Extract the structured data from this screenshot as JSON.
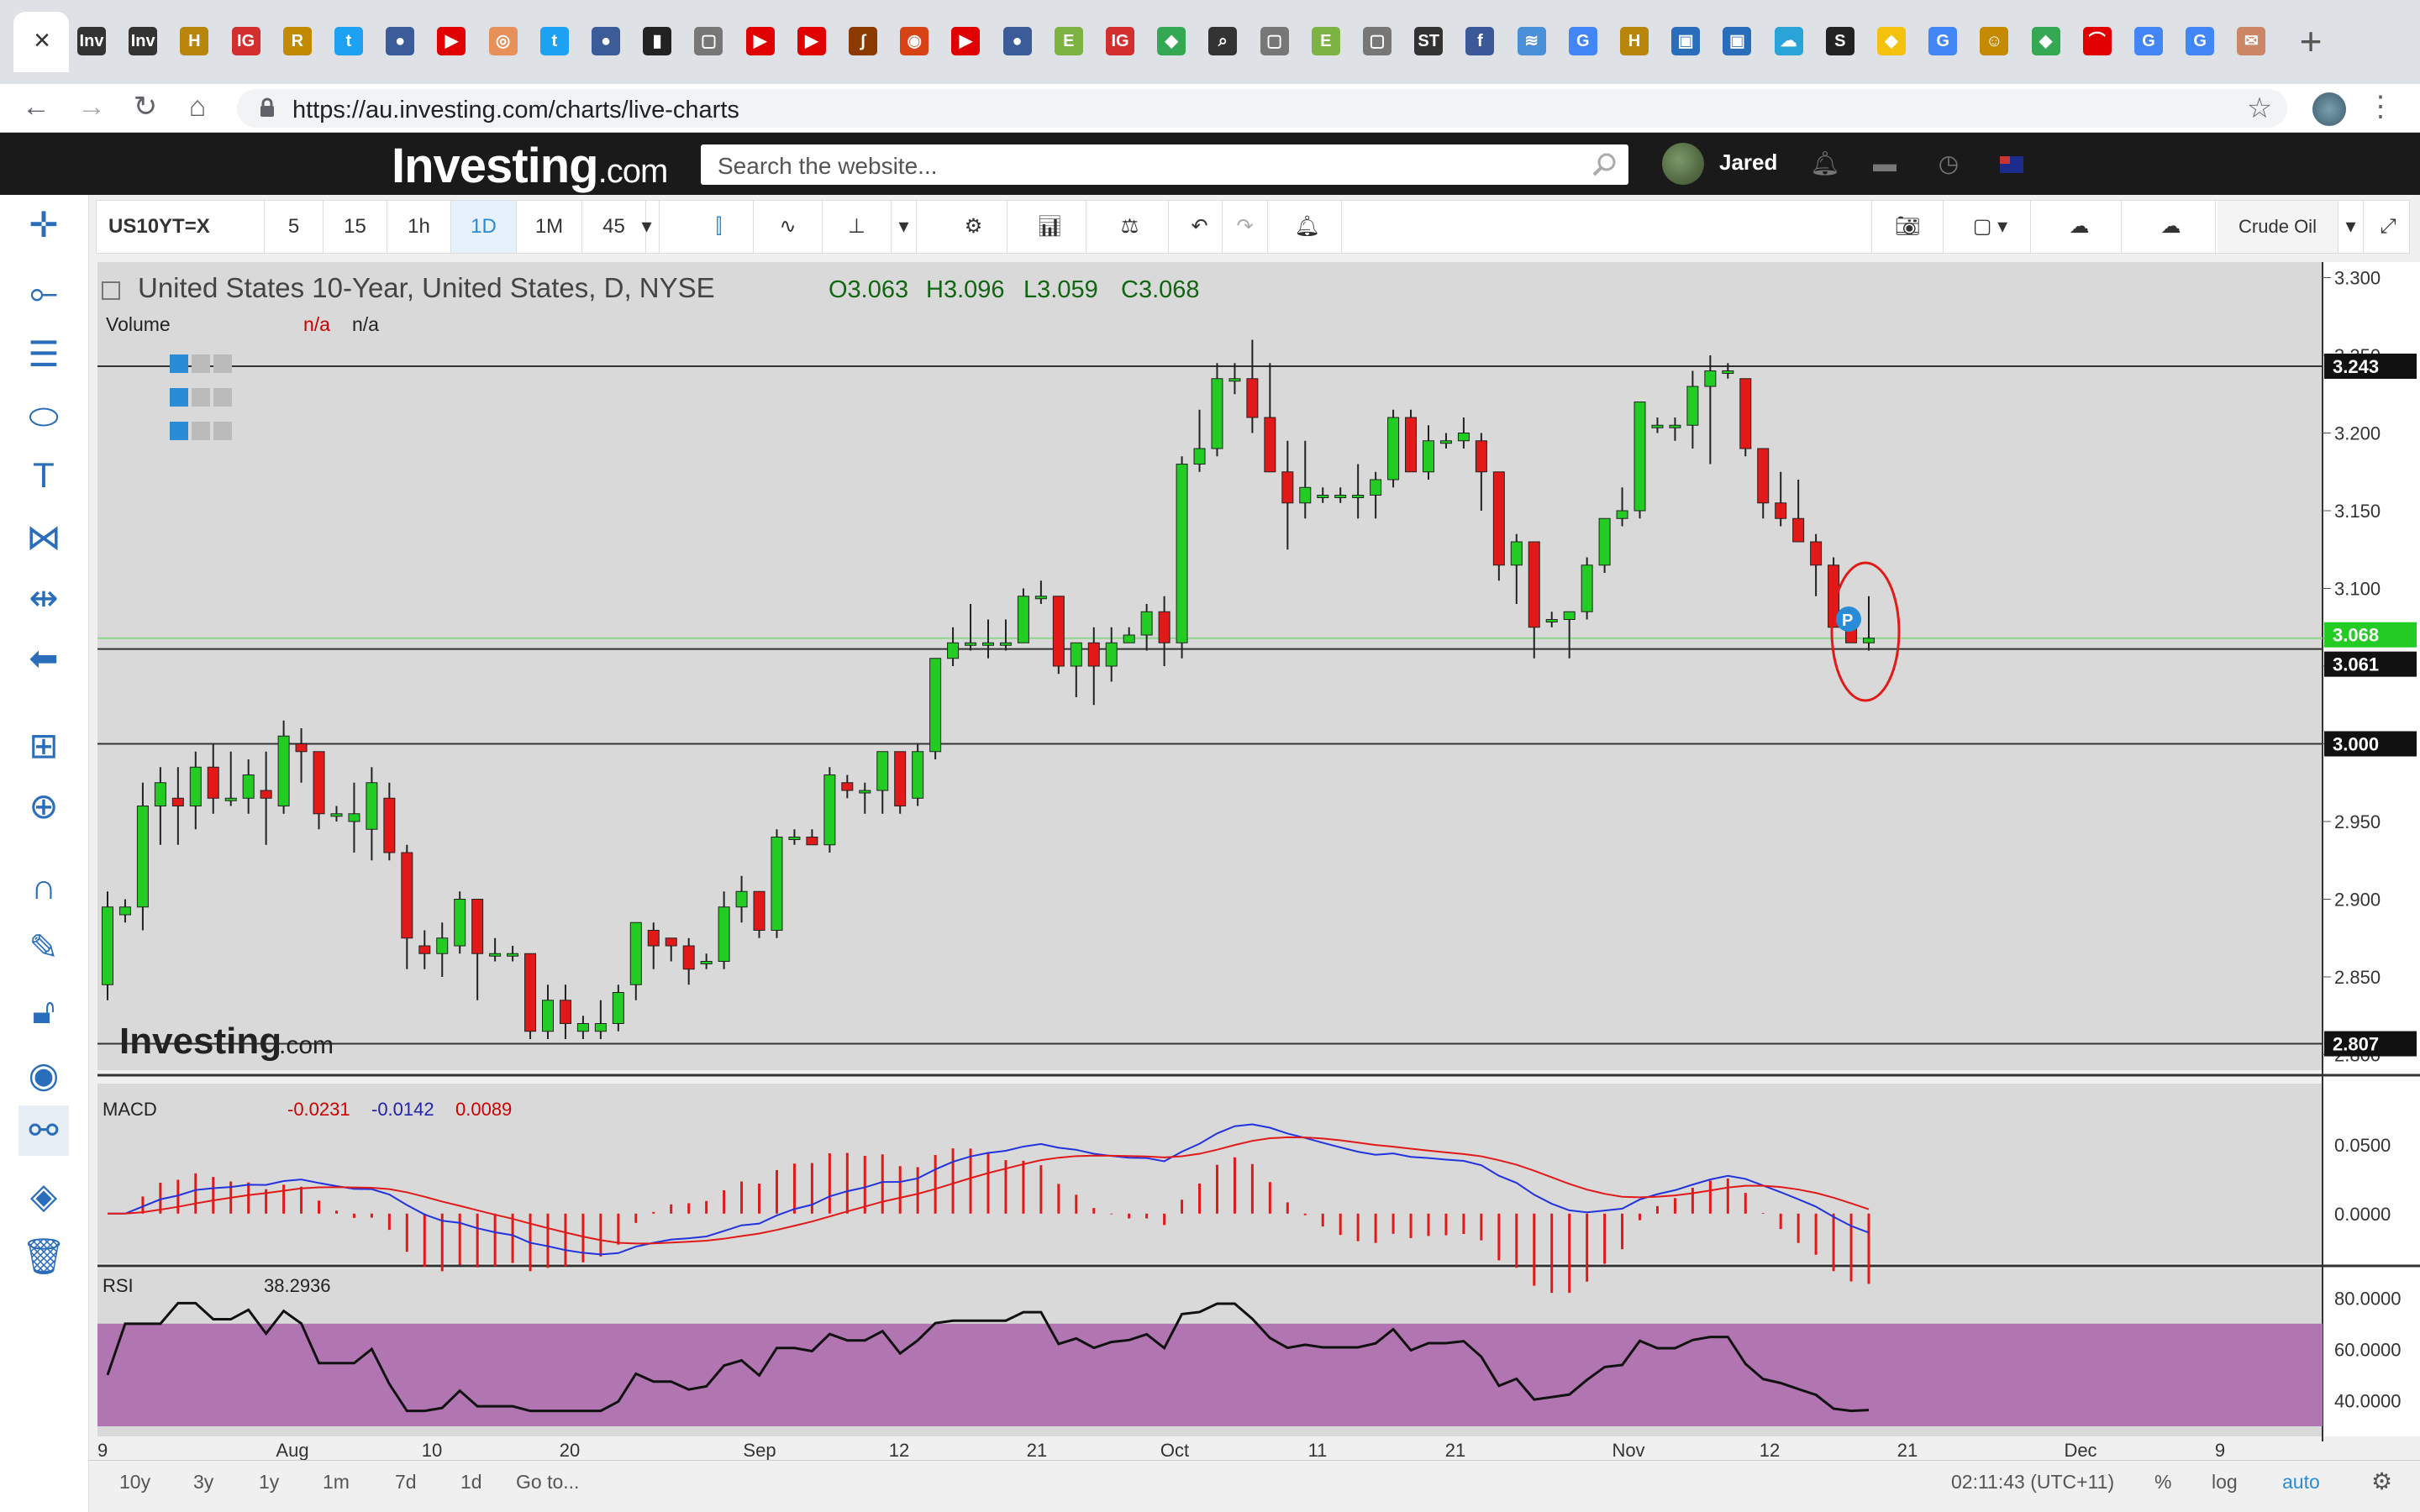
{
  "browser": {
    "url": "https://au.investing.com/charts/live-charts",
    "tab_close": "×",
    "favicons": [
      {
        "label": "Inv",
        "color": "#333333"
      },
      {
        "label": "Inv",
        "color": "#333333"
      },
      {
        "label": "H",
        "color": "#b8860b"
      },
      {
        "label": "IG",
        "color": "#d32f2f"
      },
      {
        "label": "R",
        "color": "#c28a00"
      },
      {
        "label": "t",
        "color": "#1da1f2"
      },
      {
        "label": "●",
        "color": "#3b5b99"
      },
      {
        "label": "▶",
        "color": "#e00000"
      },
      {
        "label": "◎",
        "color": "#e8905a"
      },
      {
        "label": "t",
        "color": "#1da1f2"
      },
      {
        "label": "●",
        "color": "#3b5b99"
      },
      {
        "label": "▮",
        "color": "#222222"
      },
      {
        "label": "▢",
        "color": "#777777"
      },
      {
        "label": "▶",
        "color": "#e00000"
      },
      {
        "label": "▶",
        "color": "#e00000"
      },
      {
        "label": "∫",
        "color": "#8b3a00"
      },
      {
        "label": "◉",
        "color": "#d84315"
      },
      {
        "label": "▶",
        "color": "#e00000"
      },
      {
        "label": "●",
        "color": "#3b5b99"
      },
      {
        "label": "E",
        "color": "#7cb342"
      },
      {
        "label": "IG",
        "color": "#d32f2f"
      },
      {
        "label": "◆",
        "color": "#34a853"
      },
      {
        "label": "⌕",
        "color": "#333333"
      },
      {
        "label": "▢",
        "color": "#777777"
      },
      {
        "label": "E",
        "color": "#7cb342"
      },
      {
        "label": "▢",
        "color": "#777777"
      },
      {
        "label": "ST",
        "color": "#333333"
      },
      {
        "label": "f",
        "color": "#3b5998"
      },
      {
        "label": "≋",
        "color": "#4a90d9"
      },
      {
        "label": "G",
        "color": "#4285f4"
      },
      {
        "label": "H",
        "color": "#b8860b"
      },
      {
        "label": "▣",
        "color": "#2a6ebb"
      },
      {
        "label": "▣",
        "color": "#2a6ebb"
      },
      {
        "label": "☁",
        "color": "#2aa3d8"
      },
      {
        "label": "S",
        "color": "#222222"
      },
      {
        "label": "◆",
        "color": "#f4c20d"
      },
      {
        "label": "G",
        "color": "#4285f4"
      },
      {
        "label": "☺",
        "color": "#c58a00"
      },
      {
        "label": "◆",
        "color": "#34a853"
      },
      {
        "label": "⌒",
        "color": "#e00000"
      },
      {
        "label": "G",
        "color": "#4285f4"
      },
      {
        "label": "G",
        "color": "#4285f4"
      },
      {
        "label": "✉",
        "color": "#cc8866"
      }
    ],
    "new_tab": "+"
  },
  "site": {
    "logo_main": "Investing",
    "logo_suffix": ".com",
    "search_placeholder": "Search the website...",
    "user_name": "Jared"
  },
  "toolbar": {
    "symbol": "US10YT=X",
    "intervals": [
      "5",
      "15",
      "1h",
      "1D",
      "1M",
      "45"
    ],
    "selected_interval": "1D",
    "compare_label": "Crude Oil"
  },
  "chart": {
    "title": "United States 10-Year, United States, D, NYSE",
    "ohlc": {
      "o_label": "O",
      "o": "3.063",
      "h_label": "H",
      "h": "3.096",
      "l_label": "L",
      "l": "3.059",
      "c_label": "C",
      "c": "3.068"
    },
    "volume_label": "Volume",
    "volume_values": [
      "n/a",
      "n/a"
    ],
    "watermark_main": "Investing",
    "watermark_suffix": ".com",
    "marker_label": "P",
    "price_labels": [
      {
        "text": "3.243",
        "style": "dark"
      },
      {
        "text": "3.068",
        "style": "green"
      },
      {
        "text": "3.061",
        "style": "dark"
      },
      {
        "text": "3.000",
        "style": "dark"
      },
      {
        "text": "2.807",
        "style": "dark"
      }
    ],
    "colors": {
      "up": "#22cc22",
      "down": "#e11919",
      "background": "#d9d9d9",
      "rsi_band": "#b175b1",
      "macd_line": "#2233dd",
      "signal_line": "#e11919"
    }
  },
  "macd_panel": {
    "label": "MACD",
    "v1": "-0.0231",
    "v2": "-0.0142",
    "v3": "0.0089",
    "ticks": [
      "0.0500",
      "0.0000"
    ]
  },
  "rsi_panel": {
    "label": "RSI",
    "value": "38.2936",
    "ticks": [
      "80.0000",
      "60.0000",
      "40.0000"
    ]
  },
  "x_labels": [
    "9",
    "Aug",
    "10",
    "20",
    "Sep",
    "12",
    "21",
    "Oct",
    "11",
    "21",
    "Nov",
    "12",
    "21",
    "Dec",
    "9"
  ],
  "range_bar": {
    "ranges": [
      "10y",
      "3y",
      "1y",
      "1m",
      "7d",
      "1d"
    ],
    "goto": "Go to...",
    "time": "02:11:43 (UTC+11)",
    "percent": "%",
    "log": "log",
    "auto": "auto"
  },
  "chart_data": {
    "type": "candlestick",
    "title": "United States 10-Year, United States, D, NYSE",
    "y_axis_ticks": [
      "3.300",
      "3.250",
      "3.200",
      "3.150",
      "3.100",
      "3.050",
      "3.000",
      "2.950",
      "2.900",
      "2.850",
      "2.800"
    ],
    "ylim": [
      2.79,
      3.31
    ],
    "horizontal_lines": [
      3.243,
      3.061,
      3.0,
      2.807
    ],
    "last_price": 3.068,
    "candles_ohlc": [
      [
        2.845,
        2.905,
        2.835,
        2.895
      ],
      [
        2.89,
        2.9,
        2.885,
        2.895
      ],
      [
        2.895,
        2.975,
        2.88,
        2.96
      ],
      [
        2.96,
        2.985,
        2.935,
        2.975
      ],
      [
        2.965,
        2.985,
        2.935,
        2.96
      ],
      [
        2.96,
        2.995,
        2.945,
        2.985
      ],
      [
        2.985,
        3.0,
        2.955,
        2.965
      ],
      [
        2.965,
        2.995,
        2.96,
        2.965
      ],
      [
        2.965,
        2.99,
        2.955,
        2.98
      ],
      [
        2.97,
        2.995,
        2.935,
        2.965
      ],
      [
        2.96,
        3.015,
        2.955,
        3.005
      ],
      [
        3.0,
        3.01,
        2.975,
        2.995
      ],
      [
        2.995,
        2.995,
        2.945,
        2.955
      ],
      [
        2.955,
        2.96,
        2.95,
        2.955
      ],
      [
        2.95,
        2.975,
        2.93,
        2.955
      ],
      [
        2.945,
        2.985,
        2.925,
        2.975
      ],
      [
        2.965,
        2.975,
        2.925,
        2.93
      ],
      [
        2.93,
        2.935,
        2.855,
        2.875
      ],
      [
        2.87,
        2.88,
        2.855,
        2.865
      ],
      [
        2.865,
        2.885,
        2.85,
        2.875
      ],
      [
        2.87,
        2.905,
        2.865,
        2.9
      ],
      [
        2.9,
        2.9,
        2.835,
        2.865
      ],
      [
        2.865,
        2.875,
        2.86,
        2.865
      ],
      [
        2.865,
        2.87,
        2.86,
        2.865
      ],
      [
        2.865,
        2.865,
        2.81,
        2.815
      ],
      [
        2.815,
        2.845,
        2.81,
        2.835
      ],
      [
        2.835,
        2.845,
        2.81,
        2.82
      ],
      [
        2.815,
        2.825,
        2.81,
        2.82
      ],
      [
        2.815,
        2.835,
        2.81,
        2.82
      ],
      [
        2.82,
        2.845,
        2.815,
        2.84
      ],
      [
        2.845,
        2.885,
        2.835,
        2.885
      ],
      [
        2.88,
        2.885,
        2.855,
        2.87
      ],
      [
        2.875,
        2.875,
        2.86,
        2.87
      ],
      [
        2.87,
        2.875,
        2.845,
        2.855
      ],
      [
        2.86,
        2.865,
        2.855,
        2.86
      ],
      [
        2.86,
        2.905,
        2.855,
        2.895
      ],
      [
        2.895,
        2.915,
        2.885,
        2.905
      ],
      [
        2.905,
        2.905,
        2.875,
        2.88
      ],
      [
        2.88,
        2.945,
        2.875,
        2.94
      ],
      [
        2.94,
        2.945,
        2.935,
        2.94
      ],
      [
        2.94,
        2.945,
        2.935,
        2.935
      ],
      [
        2.935,
        2.985,
        2.93,
        2.98
      ],
      [
        2.975,
        2.98,
        2.965,
        2.97
      ],
      [
        2.97,
        2.975,
        2.955,
        2.97
      ],
      [
        2.97,
        2.995,
        2.955,
        2.995
      ],
      [
        2.995,
        2.995,
        2.955,
        2.96
      ],
      [
        2.965,
        3.0,
        2.96,
        2.995
      ],
      [
        2.995,
        3.055,
        2.99,
        3.055
      ],
      [
        3.055,
        3.075,
        3.05,
        3.065
      ],
      [
        3.065,
        3.09,
        3.06,
        3.065
      ],
      [
        3.065,
        3.08,
        3.055,
        3.065
      ],
      [
        3.065,
        3.08,
        3.06,
        3.065
      ],
      [
        3.065,
        3.1,
        3.065,
        3.095
      ],
      [
        3.095,
        3.105,
        3.09,
        3.095
      ],
      [
        3.095,
        3.095,
        3.045,
        3.05
      ],
      [
        3.05,
        3.065,
        3.03,
        3.065
      ],
      [
        3.065,
        3.075,
        3.025,
        3.05
      ],
      [
        3.05,
        3.075,
        3.04,
        3.065
      ],
      [
        3.065,
        3.075,
        3.065,
        3.07
      ],
      [
        3.07,
        3.09,
        3.06,
        3.085
      ],
      [
        3.085,
        3.095,
        3.05,
        3.065
      ],
      [
        3.065,
        3.185,
        3.055,
        3.18
      ],
      [
        3.18,
        3.215,
        3.175,
        3.19
      ],
      [
        3.19,
        3.245,
        3.185,
        3.235
      ],
      [
        3.235,
        3.245,
        3.225,
        3.235
      ],
      [
        3.235,
        3.26,
        3.2,
        3.21
      ],
      [
        3.21,
        3.245,
        3.185,
        3.175
      ],
      [
        3.175,
        3.195,
        3.125,
        3.155
      ],
      [
        3.155,
        3.195,
        3.145,
        3.165
      ],
      [
        3.16,
        3.165,
        3.155,
        3.16
      ],
      [
        3.16,
        3.165,
        3.155,
        3.16
      ],
      [
        3.16,
        3.18,
        3.145,
        3.16
      ],
      [
        3.16,
        3.175,
        3.145,
        3.17
      ],
      [
        3.17,
        3.215,
        3.165,
        3.21
      ],
      [
        3.21,
        3.215,
        3.175,
        3.175
      ],
      [
        3.175,
        3.205,
        3.17,
        3.195
      ],
      [
        3.195,
        3.2,
        3.19,
        3.195
      ],
      [
        3.195,
        3.21,
        3.19,
        3.2
      ],
      [
        3.195,
        3.2,
        3.15,
        3.175
      ],
      [
        3.175,
        3.175,
        3.105,
        3.115
      ],
      [
        3.115,
        3.135,
        3.09,
        3.13
      ],
      [
        3.13,
        3.13,
        3.055,
        3.075
      ],
      [
        3.08,
        3.085,
        3.075,
        3.08
      ],
      [
        3.08,
        3.085,
        3.055,
        3.085
      ],
      [
        3.085,
        3.12,
        3.08,
        3.115
      ],
      [
        3.115,
        3.145,
        3.11,
        3.145
      ],
      [
        3.145,
        3.165,
        3.14,
        3.15
      ],
      [
        3.15,
        3.22,
        3.145,
        3.22
      ],
      [
        3.205,
        3.21,
        3.2,
        3.205
      ],
      [
        3.205,
        3.21,
        3.195,
        3.205
      ],
      [
        3.205,
        3.24,
        3.19,
        3.23
      ],
      [
        3.23,
        3.25,
        3.18,
        3.24
      ],
      [
        3.24,
        3.245,
        3.235,
        3.24
      ],
      [
        3.235,
        3.235,
        3.185,
        3.19
      ],
      [
        3.19,
        3.19,
        3.145,
        3.155
      ],
      [
        3.155,
        3.175,
        3.14,
        3.145
      ],
      [
        3.145,
        3.17,
        3.13,
        3.13
      ],
      [
        3.13,
        3.135,
        3.095,
        3.115
      ],
      [
        3.115,
        3.12,
        3.075,
        3.075
      ],
      [
        3.075,
        3.08,
        3.065,
        3.065
      ],
      [
        3.065,
        3.095,
        3.06,
        3.068
      ]
    ],
    "macd_panel": {
      "yticks": [
        0.05,
        0.0
      ]
    },
    "rsi_panel": {
      "yticks": [
        80,
        60,
        40
      ],
      "band": [
        30,
        70
      ]
    }
  }
}
